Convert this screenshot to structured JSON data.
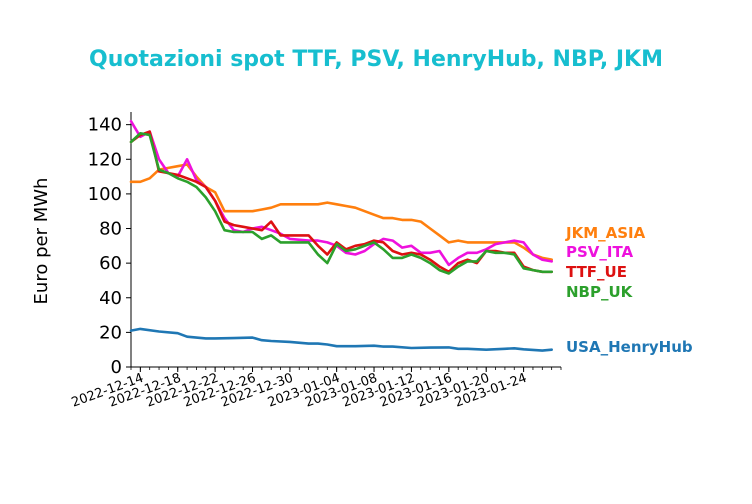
{
  "chart_data": {
    "type": "line",
    "title": "Quotazioni spot TTF, PSV, HenryHub, NBP, JKM",
    "title_color": "#17becf",
    "ylabel": "Euro per MWh",
    "xlabel": "",
    "ylim": [
      0,
      145
    ],
    "yticks": [
      0,
      20,
      40,
      60,
      80,
      100,
      120,
      140
    ],
    "xlim": [
      "2022-12-13",
      "2023-01-28"
    ],
    "xticks": [
      "2022-12-14",
      "2022-12-18",
      "2022-12-22",
      "2022-12-26",
      "2022-12-30",
      "2023-01-04",
      "2023-01-08",
      "2023-01-12",
      "2023-01-16",
      "2023-01-20",
      "2023-01-24"
    ],
    "grid": false,
    "legend": "direct labels at right end of lines",
    "series": [
      {
        "name": "JKM_ASIA",
        "color": "#ff7f0e",
        "points": [
          [
            "2022-12-13",
            107
          ],
          [
            "2022-12-14",
            107
          ],
          [
            "2022-12-15",
            109
          ],
          [
            "2022-12-16",
            114
          ],
          [
            "2022-12-17",
            115
          ],
          [
            "2022-12-18",
            116
          ],
          [
            "2022-12-19",
            117
          ],
          [
            "2022-12-20",
            110
          ],
          [
            "2022-12-21",
            104
          ],
          [
            "2022-12-22",
            101
          ],
          [
            "2022-12-23",
            90
          ],
          [
            "2022-12-24",
            90
          ],
          [
            "2022-12-25",
            90
          ],
          [
            "2022-12-26",
            90
          ],
          [
            "2022-12-27",
            91
          ],
          [
            "2022-12-28",
            92
          ],
          [
            "2022-12-29",
            94
          ],
          [
            "2022-12-30",
            94
          ],
          [
            "2023-01-01",
            94
          ],
          [
            "2023-01-02",
            94
          ],
          [
            "2023-01-03",
            95
          ],
          [
            "2023-01-04",
            94
          ],
          [
            "2023-01-05",
            93
          ],
          [
            "2023-01-06",
            92
          ],
          [
            "2023-01-07",
            90
          ],
          [
            "2023-01-08",
            88
          ],
          [
            "2023-01-09",
            86
          ],
          [
            "2023-01-10",
            86
          ],
          [
            "2023-01-11",
            85
          ],
          [
            "2023-01-12",
            85
          ],
          [
            "2023-01-13",
            84
          ],
          [
            "2023-01-14",
            80
          ],
          [
            "2023-01-15",
            76
          ],
          [
            "2023-01-16",
            72
          ],
          [
            "2023-01-17",
            73
          ],
          [
            "2023-01-18",
            72
          ],
          [
            "2023-01-19",
            72
          ],
          [
            "2023-01-20",
            72
          ],
          [
            "2023-01-21",
            72
          ],
          [
            "2023-01-22",
            72
          ],
          [
            "2023-01-23",
            72
          ],
          [
            "2023-01-24",
            69
          ],
          [
            "2023-01-25",
            65
          ],
          [
            "2023-01-26",
            63
          ],
          [
            "2023-01-27",
            62
          ]
        ]
      },
      {
        "name": "PSV_ITA",
        "color": "#ee11dd",
        "points": [
          [
            "2022-12-13",
            142
          ],
          [
            "2022-12-14",
            133
          ],
          [
            "2022-12-15",
            136
          ],
          [
            "2022-12-16",
            120
          ],
          [
            "2022-12-17",
            112
          ],
          [
            "2022-12-18",
            110
          ],
          [
            "2022-12-19",
            120
          ],
          [
            "2022-12-20",
            108
          ],
          [
            "2022-12-21",
            104
          ],
          [
            "2022-12-22",
            96
          ],
          [
            "2022-12-23",
            86
          ],
          [
            "2022-12-24",
            79
          ],
          [
            "2022-12-25",
            78
          ],
          [
            "2022-12-26",
            80
          ],
          [
            "2022-12-27",
            81
          ],
          [
            "2022-12-28",
            79
          ],
          [
            "2022-12-29",
            77
          ],
          [
            "2022-12-30",
            74
          ],
          [
            "2023-01-01",
            73
          ],
          [
            "2023-01-02",
            73
          ],
          [
            "2023-01-03",
            72
          ],
          [
            "2023-01-04",
            70
          ],
          [
            "2023-01-05",
            66
          ],
          [
            "2023-01-06",
            65
          ],
          [
            "2023-01-07",
            67
          ],
          [
            "2023-01-08",
            71
          ],
          [
            "2023-01-09",
            74
          ],
          [
            "2023-01-10",
            73
          ],
          [
            "2023-01-11",
            69
          ],
          [
            "2023-01-12",
            70
          ],
          [
            "2023-01-13",
            66
          ],
          [
            "2023-01-14",
            66
          ],
          [
            "2023-01-15",
            67
          ],
          [
            "2023-01-16",
            59
          ],
          [
            "2023-01-17",
            63
          ],
          [
            "2023-01-18",
            66
          ],
          [
            "2023-01-19",
            66
          ],
          [
            "2023-01-20",
            68
          ],
          [
            "2023-01-21",
            71
          ],
          [
            "2023-01-22",
            72
          ],
          [
            "2023-01-23",
            73
          ],
          [
            "2023-01-24",
            72
          ],
          [
            "2023-01-25",
            65
          ],
          [
            "2023-01-26",
            62
          ],
          [
            "2023-01-27",
            61
          ]
        ]
      },
      {
        "name": "TTF_UE",
        "color": "#dd1111",
        "points": [
          [
            "2022-12-13",
            130
          ],
          [
            "2022-12-14",
            134
          ],
          [
            "2022-12-15",
            136
          ],
          [
            "2022-12-16",
            113
          ],
          [
            "2022-12-17",
            112
          ],
          [
            "2022-12-18",
            111
          ],
          [
            "2022-12-19",
            109
          ],
          [
            "2022-12-20",
            107
          ],
          [
            "2022-12-21",
            104
          ],
          [
            "2022-12-22",
            96
          ],
          [
            "2022-12-23",
            84
          ],
          [
            "2022-12-24",
            82
          ],
          [
            "2022-12-25",
            81
          ],
          [
            "2022-12-26",
            80
          ],
          [
            "2022-12-27",
            79
          ],
          [
            "2022-12-28",
            84
          ],
          [
            "2022-12-29",
            76
          ],
          [
            "2022-12-30",
            76
          ],
          [
            "2023-01-01",
            76
          ],
          [
            "2023-01-02",
            70
          ],
          [
            "2023-01-03",
            65
          ],
          [
            "2023-01-04",
            72
          ],
          [
            "2023-01-05",
            68
          ],
          [
            "2023-01-06",
            70
          ],
          [
            "2023-01-07",
            71
          ],
          [
            "2023-01-08",
            73
          ],
          [
            "2023-01-09",
            72
          ],
          [
            "2023-01-10",
            67
          ],
          [
            "2023-01-11",
            65
          ],
          [
            "2023-01-12",
            66
          ],
          [
            "2023-01-13",
            65
          ],
          [
            "2023-01-14",
            62
          ],
          [
            "2023-01-15",
            58
          ],
          [
            "2023-01-16",
            55
          ],
          [
            "2023-01-17",
            60
          ],
          [
            "2023-01-18",
            62
          ],
          [
            "2023-01-19",
            60
          ],
          [
            "2023-01-20",
            67
          ],
          [
            "2023-01-21",
            67
          ],
          [
            "2023-01-22",
            66
          ],
          [
            "2023-01-23",
            66
          ],
          [
            "2023-01-24",
            58
          ],
          [
            "2023-01-25",
            56
          ],
          [
            "2023-01-26",
            55
          ],
          [
            "2023-01-27",
            55
          ]
        ]
      },
      {
        "name": "NBP_UK",
        "color": "#2ca02c",
        "points": [
          [
            "2022-12-13",
            130
          ],
          [
            "2022-12-14",
            135
          ],
          [
            "2022-12-15",
            134
          ],
          [
            "2022-12-16",
            114
          ],
          [
            "2022-12-17",
            112
          ],
          [
            "2022-12-18",
            109
          ],
          [
            "2022-12-19",
            107
          ],
          [
            "2022-12-20",
            104
          ],
          [
            "2022-12-21",
            98
          ],
          [
            "2022-12-22",
            90
          ],
          [
            "2022-12-23",
            79
          ],
          [
            "2022-12-24",
            78
          ],
          [
            "2022-12-25",
            78
          ],
          [
            "2022-12-26",
            78
          ],
          [
            "2022-12-27",
            74
          ],
          [
            "2022-12-28",
            76
          ],
          [
            "2022-12-29",
            72
          ],
          [
            "2022-12-30",
            72
          ],
          [
            "2023-01-01",
            72
          ],
          [
            "2023-01-02",
            65
          ],
          [
            "2023-01-03",
            60
          ],
          [
            "2023-01-04",
            71
          ],
          [
            "2023-01-05",
            67
          ],
          [
            "2023-01-06",
            68
          ],
          [
            "2023-01-07",
            70
          ],
          [
            "2023-01-08",
            72
          ],
          [
            "2023-01-09",
            68
          ],
          [
            "2023-01-10",
            63
          ],
          [
            "2023-01-11",
            63
          ],
          [
            "2023-01-12",
            65
          ],
          [
            "2023-01-13",
            63
          ],
          [
            "2023-01-14",
            60
          ],
          [
            "2023-01-15",
            56
          ],
          [
            "2023-01-16",
            54
          ],
          [
            "2023-01-17",
            58
          ],
          [
            "2023-01-18",
            61
          ],
          [
            "2023-01-19",
            61
          ],
          [
            "2023-01-20",
            67
          ],
          [
            "2023-01-21",
            66
          ],
          [
            "2023-01-22",
            66
          ],
          [
            "2023-01-23",
            65
          ],
          [
            "2023-01-24",
            57
          ],
          [
            "2023-01-25",
            56
          ],
          [
            "2023-01-26",
            55
          ],
          [
            "2023-01-27",
            55
          ]
        ]
      },
      {
        "name": "USA_HenryHub",
        "color": "#1f77b4",
        "points": [
          [
            "2022-12-13",
            21
          ],
          [
            "2022-12-14",
            22
          ],
          [
            "2022-12-16",
            20.5
          ],
          [
            "2022-12-18",
            19.5
          ],
          [
            "2022-12-19",
            17.5
          ],
          [
            "2022-12-20",
            17
          ],
          [
            "2022-12-21",
            16.5
          ],
          [
            "2022-12-22",
            16.5
          ],
          [
            "2022-12-24",
            16.7
          ],
          [
            "2022-12-26",
            17
          ],
          [
            "2022-12-27",
            15.5
          ],
          [
            "2022-12-28",
            15
          ],
          [
            "2022-12-30",
            14.5
          ],
          [
            "2023-01-01",
            13.5
          ],
          [
            "2023-01-02",
            13.5
          ],
          [
            "2023-01-03",
            13
          ],
          [
            "2023-01-04",
            12
          ],
          [
            "2023-01-06",
            12
          ],
          [
            "2023-01-08",
            12.3
          ],
          [
            "2023-01-09",
            11.8
          ],
          [
            "2023-01-10",
            11.8
          ],
          [
            "2023-01-12",
            11
          ],
          [
            "2023-01-14",
            11.2
          ],
          [
            "2023-01-16",
            11.3
          ],
          [
            "2023-01-17",
            10.5
          ],
          [
            "2023-01-18",
            10.5
          ],
          [
            "2023-01-20",
            10
          ],
          [
            "2023-01-22",
            10.5
          ],
          [
            "2023-01-23",
            10.8
          ],
          [
            "2023-01-24",
            10.2
          ],
          [
            "2023-01-26",
            9.5
          ],
          [
            "2023-01-27",
            10
          ]
        ]
      }
    ]
  }
}
